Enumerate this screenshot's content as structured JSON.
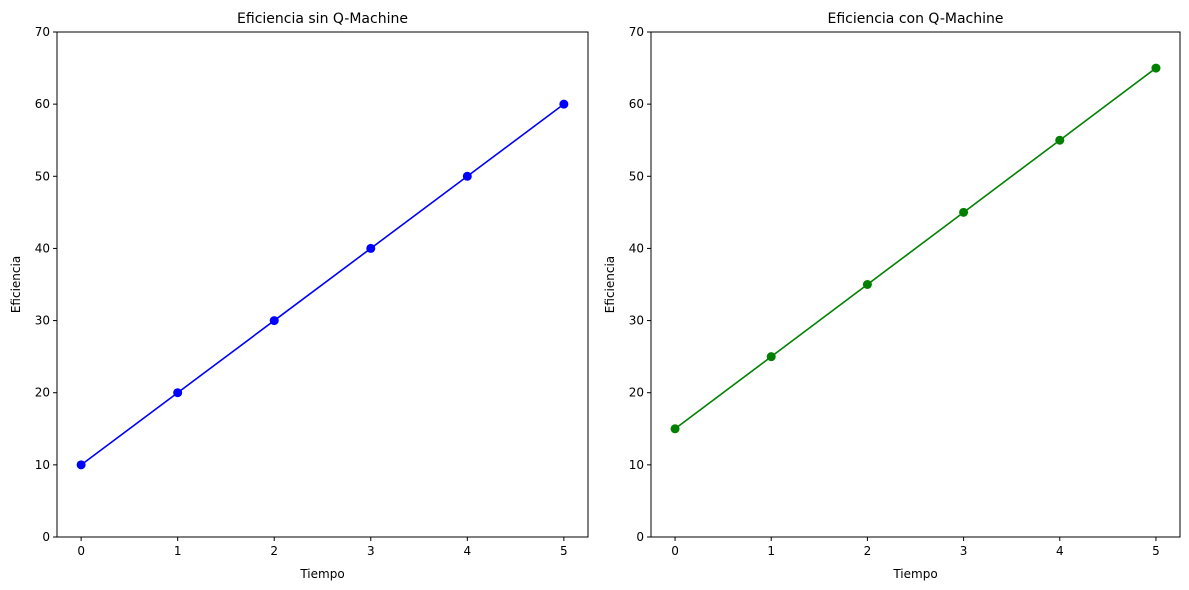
{
  "chart_data": [
    {
      "type": "line",
      "title": "Eficiencia sin Q-Machine",
      "xlabel": "Tiempo",
      "ylabel": "Eficiencia",
      "x": [
        0,
        1,
        2,
        3,
        4,
        5
      ],
      "series": [
        {
          "values": [
            10,
            20,
            30,
            40,
            50,
            60
          ],
          "color": "#0000ff",
          "marker": "circle"
        }
      ],
      "xlim": [
        -0.25,
        5.25
      ],
      "ylim": [
        0,
        70
      ],
      "xticks": [
        0,
        1,
        2,
        3,
        4,
        5
      ],
      "yticks": [
        0,
        10,
        20,
        30,
        40,
        50,
        60,
        70
      ],
      "grid": false
    },
    {
      "type": "line",
      "title": "Eficiencia con Q-Machine",
      "xlabel": "Tiempo",
      "ylabel": "Eficiencia",
      "x": [
        0,
        1,
        2,
        3,
        4,
        5
      ],
      "series": [
        {
          "values": [
            15,
            25,
            35,
            45,
            55,
            65
          ],
          "color": "#008000",
          "marker": "circle"
        }
      ],
      "xlim": [
        -0.25,
        5.25
      ],
      "ylim": [
        0,
        70
      ],
      "xticks": [
        0,
        1,
        2,
        3,
        4,
        5
      ],
      "yticks": [
        0,
        10,
        20,
        30,
        40,
        50,
        60,
        70
      ],
      "grid": false
    }
  ]
}
